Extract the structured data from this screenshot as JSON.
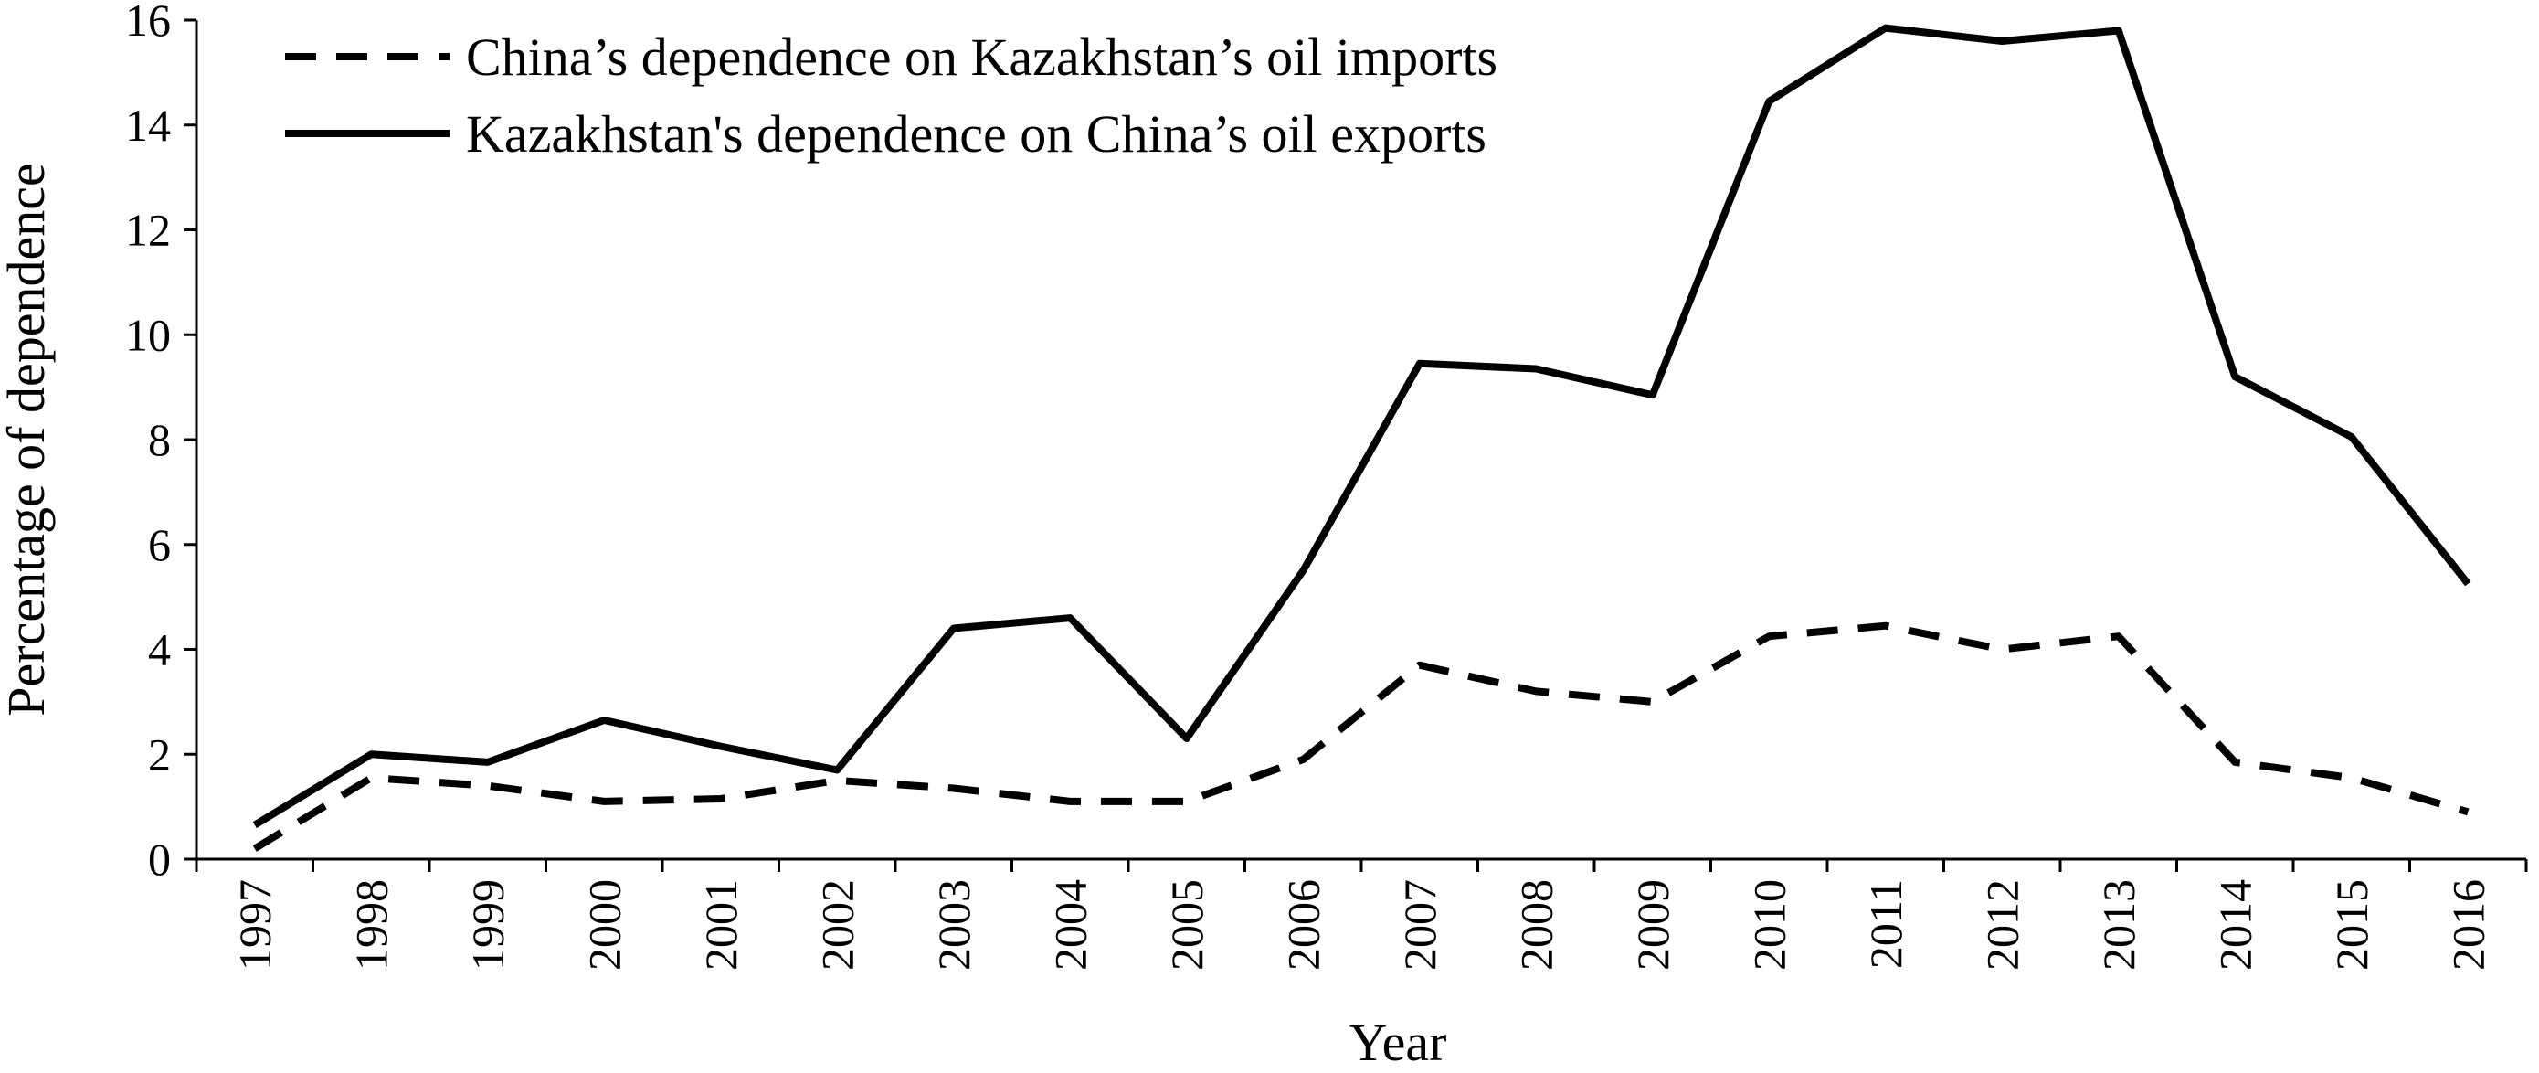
{
  "chart_data": {
    "type": "line",
    "title": "",
    "xlabel": "Year",
    "ylabel": "Percentage of dependence",
    "x": [
      "1997",
      "1998",
      "1999",
      "2000",
      "2001",
      "2002",
      "2003",
      "2004",
      "2005",
      "2006",
      "2007",
      "2008",
      "2009",
      "2010",
      "2011",
      "2012",
      "2013",
      "2014",
      "2015",
      "2016"
    ],
    "ylim": [
      0,
      16
    ],
    "yticks": [
      "0",
      "2",
      "4",
      "6",
      "8",
      "10",
      "12",
      "14",
      "16"
    ],
    "grid": false,
    "legend_position": "top-left",
    "series": [
      {
        "name": "China’s dependence on Kazakhstan’s oil imports",
        "style": "dashed",
        "color": "#000000",
        "values": [
          0.2,
          1.55,
          1.4,
          1.1,
          1.15,
          1.5,
          1.35,
          1.1,
          1.1,
          1.9,
          3.7,
          3.2,
          3.0,
          4.25,
          4.45,
          4.0,
          4.25,
          1.85,
          1.55,
          0.9
        ]
      },
      {
        "name": "Kazakhstan's dependence on China’s oil exports",
        "style": "solid",
        "color": "#000000",
        "values": [
          0.65,
          2.0,
          1.85,
          2.65,
          2.15,
          1.7,
          4.4,
          4.6,
          2.3,
          5.5,
          9.45,
          9.35,
          8.85,
          14.45,
          15.85,
          15.6,
          15.8,
          9.2,
          8.05,
          5.25
        ]
      }
    ]
  }
}
